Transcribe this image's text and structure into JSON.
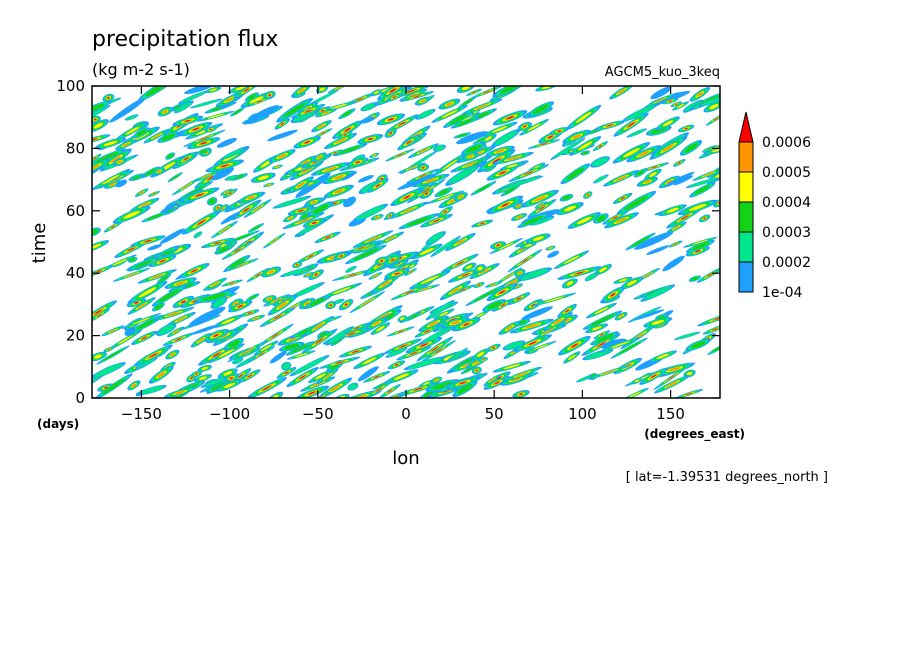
{
  "chart_data": {
    "type": "heatmap",
    "title": "precipitation flux",
    "units": "(kg m-2 s-1)",
    "dataset": "AGCM5_kuo_3keq",
    "xlabel": "lon",
    "ylabel": "time",
    "x_units": "(degrees_east)",
    "y_units": "(days)",
    "annotation": "[ lat=-1.39531 degrees_north ]",
    "xlim": [
      -178,
      178
    ],
    "ylim": [
      0,
      100
    ],
    "x_ticks": [
      -150,
      -100,
      -50,
      0,
      50,
      100,
      150
    ],
    "x_tick_labels": [
      "−150",
      "−100",
      "−50",
      "0",
      "50",
      "100",
      "150"
    ],
    "y_ticks": [
      0,
      20,
      40,
      60,
      80,
      100
    ],
    "y_tick_labels": [
      "0",
      "20",
      "40",
      "60",
      "80",
      "100"
    ],
    "grid": false,
    "legend": {
      "placement": "right",
      "levels": [
        0.0001,
        0.0002,
        0.0003,
        0.0004,
        0.0005,
        0.0006
      ],
      "labels": [
        "1e-04",
        "0.0002",
        "0.0003",
        "0.0004",
        "0.0005",
        "0.0006"
      ],
      "colors": [
        "#1ea0ff",
        "#00e68c",
        "#14d214",
        "#ffff00",
        "#ff9600",
        "#ff0000"
      ],
      "extend": "max"
    }
  }
}
